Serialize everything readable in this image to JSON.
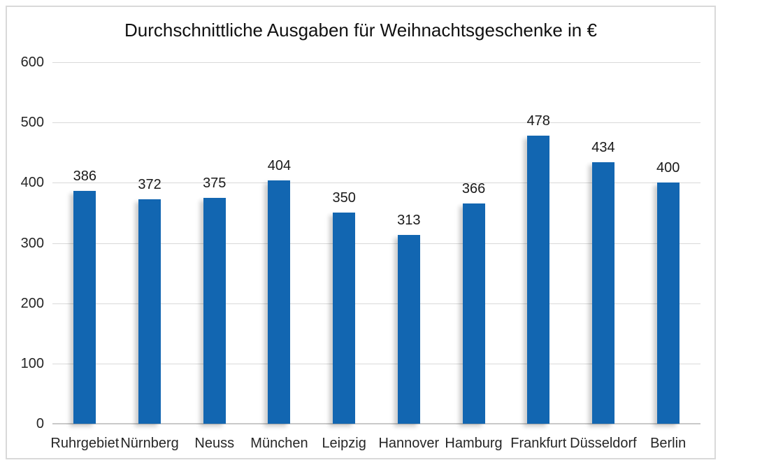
{
  "chart_data": {
    "type": "bar",
    "title": "Durchschnittliche Ausgaben für Weihnachtsgeschenke in €",
    "categories": [
      "Ruhrgebiet",
      "Nürnberg",
      "Neuss",
      "München",
      "Leipzig",
      "Hannover",
      "Hamburg",
      "Frankfurt",
      "Düsseldorf",
      "Berlin"
    ],
    "values": [
      386,
      372,
      375,
      404,
      350,
      313,
      366,
      478,
      434,
      400
    ],
    "xlabel": "",
    "ylabel": "",
    "ylim": [
      0,
      600
    ],
    "yticks": [
      0,
      100,
      200,
      300,
      400,
      500,
      600
    ],
    "grid": true,
    "legend_position": "none",
    "data_labels": true,
    "colors": {
      "bar": "#1266B1",
      "gridline": "#d9d9d9",
      "axis_line": "#c9c9c9",
      "frame_border": "#d9d9d9",
      "title_text": "#111111",
      "tick_text": "#262626",
      "label_text": "#1a1a1a",
      "background": "#ffffff"
    }
  }
}
